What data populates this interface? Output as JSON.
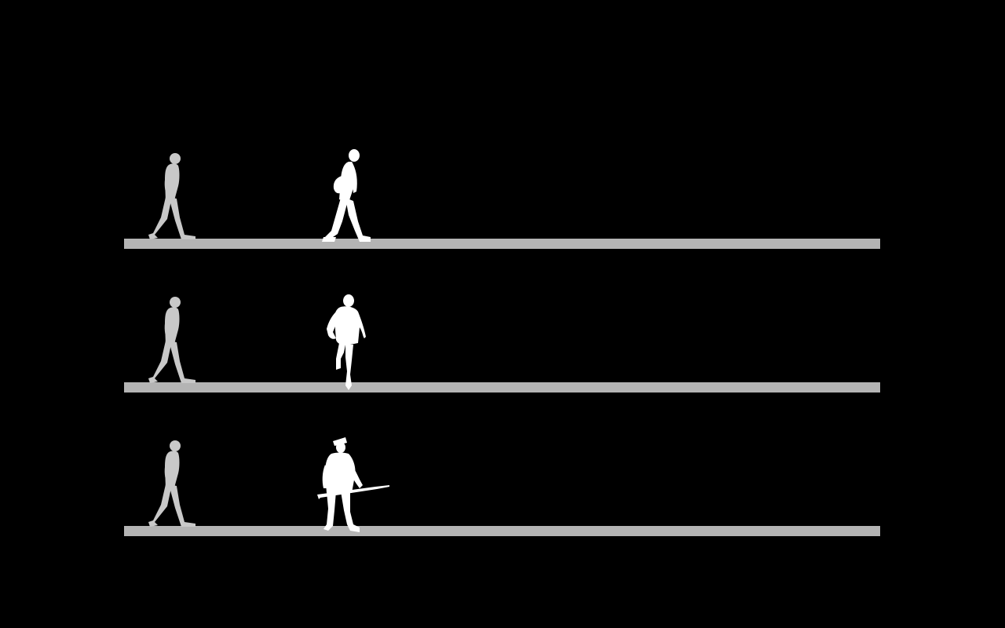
{
  "colors": {
    "background": "#000000",
    "track": "#b4b4b4",
    "reference_figure": "#c8c8c8",
    "target_figure": "#ffffff"
  },
  "lanes": [
    {
      "reference": {
        "icon": "walking-man-icon"
      },
      "target": {
        "icon": "walking-man-with-bag-icon"
      }
    },
    {
      "reference": {
        "icon": "walking-man-icon"
      },
      "target": {
        "icon": "running-man-icon"
      }
    },
    {
      "reference": {
        "icon": "walking-man-icon"
      },
      "target": {
        "icon": "soldier-with-rifle-icon"
      }
    }
  ]
}
